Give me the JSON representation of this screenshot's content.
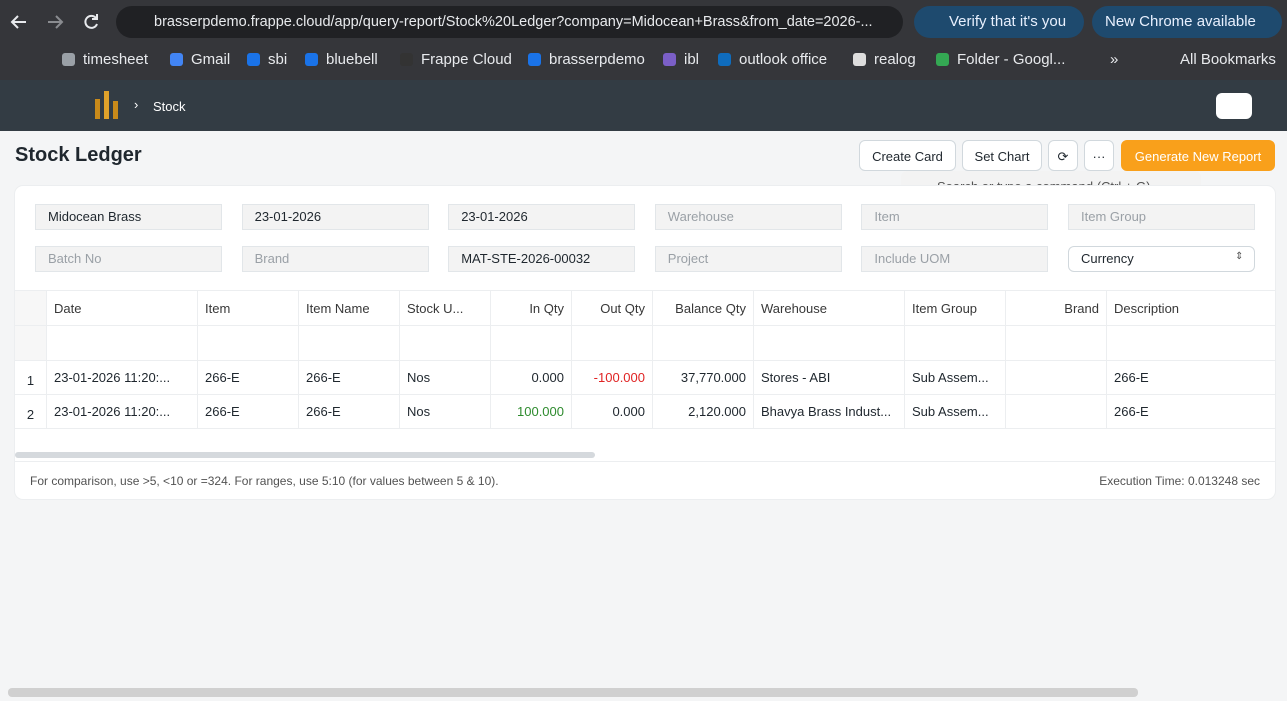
{
  "browser": {
    "url": "brasserpdemo.frappe.cloud/app/query-report/Stock%20Ledger?company=Midocean+Brass&from_date=2026-...",
    "verify": "Verify that it's you",
    "chrome_update": "New Chrome available"
  },
  "bookmarks": [
    "timesheet",
    "Gmail",
    "sbi",
    "bluebell",
    "Frappe Cloud",
    "brasserpdemo",
    "ibl",
    "outlook office",
    "realog",
    "Folder - Googl..."
  ],
  "all_bookmarks": "All Bookmarks",
  "navbar": {
    "breadcrumb": "Stock",
    "search": "Search or type a command (Ctrl + G)"
  },
  "page": {
    "title": "Stock Ledger",
    "buttons": [
      "Create Card",
      "Set Chart"
    ],
    "primary_button": "Generate New Report"
  },
  "filters": [
    {
      "label": "Midocean Brass",
      "filled": true
    },
    {
      "label": "23-01-2026",
      "filled": true
    },
    {
      "label": "23-01-2026",
      "filled": true
    },
    {
      "label": "Warehouse",
      "filled": false
    },
    {
      "label": "Item",
      "filled": false
    },
    {
      "label": "Item Group",
      "filled": false
    },
    {
      "label": "Batch No",
      "filled": false
    },
    {
      "label": "Brand",
      "filled": false
    },
    {
      "label": "MAT-STE-2026-00032",
      "filled": true
    },
    {
      "label": "Project",
      "filled": false
    },
    {
      "label": "Include UOM",
      "filled": false
    },
    {
      "label": "Currency",
      "filled": true,
      "select": true
    }
  ],
  "table": {
    "columns": [
      "Date",
      "Item",
      "Item Name",
      "Stock U...",
      "In Qty",
      "Out Qty",
      "Balance Qty",
      "Warehouse",
      "Item Group",
      "Brand",
      "Description"
    ],
    "rows": [
      {
        "index": "1",
        "cells": [
          "23-01-2026 11:20:...",
          "266-E",
          "266-E",
          "Nos",
          "0.000",
          "-100.000",
          "37,770.000",
          "Stores - ABI",
          "Sub Assem...",
          null,
          "266-E"
        ]
      },
      {
        "index": "2",
        "cells": [
          "23-01-2026 11:20:...",
          "266-E",
          "266-E",
          "Nos",
          "100.000",
          "0.000",
          "2,120.000",
          "Bhavya Brass Indust...",
          "Sub Assem...",
          null,
          "266-E"
        ]
      }
    ]
  },
  "footer": {
    "hint": "For comparison, use >5, <10 or =324. For ranges, use 5:10 (for values between 5 & 10).",
    "execution_time": "Execution Time: 0.013248 sec"
  }
}
